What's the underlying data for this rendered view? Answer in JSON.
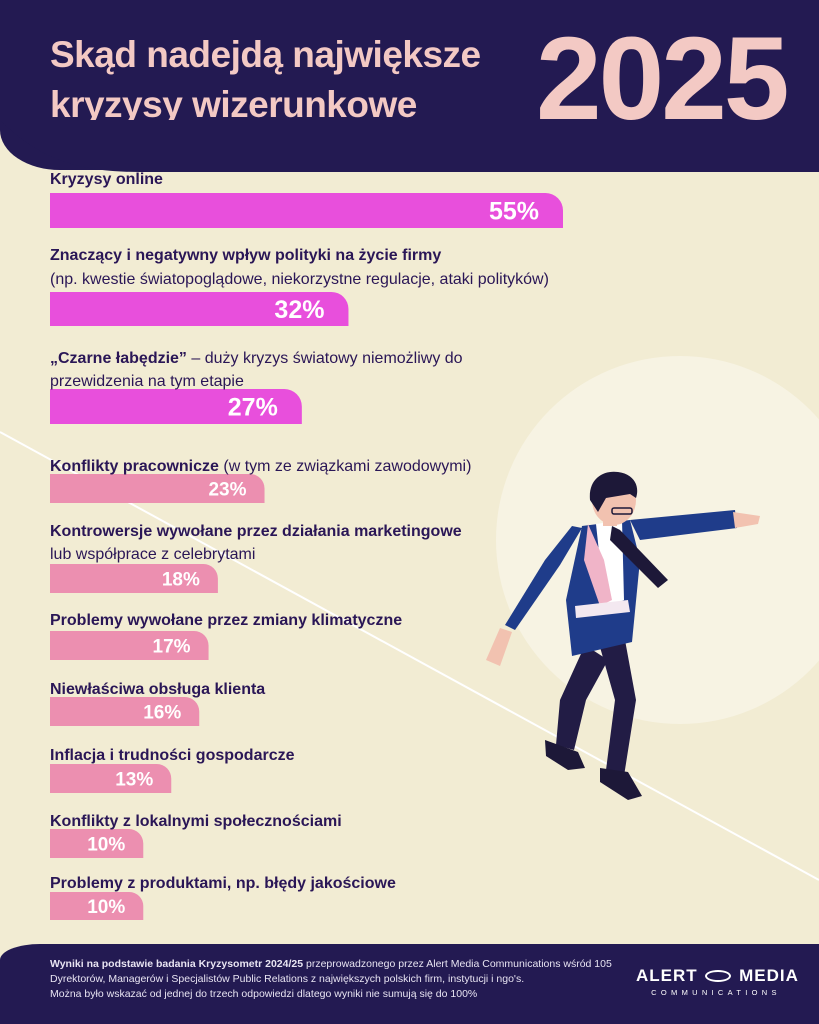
{
  "header": {
    "title_line1": "Skąd nadejdą największe",
    "title_line2": "kryzysy wizerunkowe",
    "year": "2025"
  },
  "colors": {
    "background": "#f2ecd3",
    "header_bg": "#231a52",
    "title_pink": "#f3c9c4",
    "bar_major": "#e84fdc",
    "bar_minor": "#ec8fb0",
    "label_text": "#2a1656"
  },
  "chart_data": {
    "type": "bar",
    "orientation": "horizontal",
    "unit": "%",
    "xlim": [
      0,
      55
    ],
    "grid": false,
    "categories": [
      {
        "bold": "Kryzysy online",
        "rest": "",
        "line2": "",
        "line2_bold": false
      },
      {
        "bold": "Znaczący i negatywny wpływ polityki na życie firmy",
        "rest": "",
        "line2": "(np. kwestie światopoglądowe, niekorzystne regulacje, ataki polityków)",
        "line2_bold": false
      },
      {
        "bold": "„Czarne łabędzie”",
        "rest": " – duży kryzys światowy niemożliwy do",
        "line2": "przewidzenia na tym etapie",
        "line2_bold": false
      },
      {
        "bold": "Konflikty pracownicze",
        "rest": " (w tym ze związkami zawodowymi)",
        "line2": "",
        "line2_bold": false
      },
      {
        "bold": "Kontrowersje wywołane przez działania marketingowe",
        "rest": "",
        "line2": "lub współprace z celebrytami",
        "line2_bold": false
      },
      {
        "bold": "Problemy wywołane przez zmiany klimatyczne",
        "rest": "",
        "line2": "",
        "line2_bold": false
      },
      {
        "bold": "Niewłaściwa obsługa klienta",
        "rest": "",
        "line2": "",
        "line2_bold": false
      },
      {
        "bold": "Inflacja i trudności gospodarcze",
        "rest": "",
        "line2": "",
        "line2_bold": false
      },
      {
        "bold": "Konflikty z lokalnymi społecznościami",
        "rest": "",
        "line2": "",
        "line2_bold": false
      },
      {
        "bold": "Problemy z produktami, np. błędy jakościowe",
        "rest": "",
        "line2": "",
        "line2_bold": false
      }
    ],
    "values": [
      55,
      32,
      27,
      23,
      18,
      17,
      16,
      13,
      10,
      10
    ],
    "value_labels": [
      "55%",
      "32%",
      "27%",
      "23%",
      "18%",
      "17%",
      "16%",
      "13%",
      "10%",
      "10%"
    ],
    "major_count": 3
  },
  "footer": {
    "note_bold": "Wyniki na podstawie badania Kryzysometr 2024/25",
    "note_line1": " przeprowadzonego przez Alert Media Communications wśród 105",
    "note_line2": "Dyrektorów, Managerów i Specjalistów Public Relations z największych polskich firm, instytucji i ngo's.",
    "note_line3": "Można było wskazać od jednej do trzech odpowiedzi dlatego wyniki nie sumują się do 100%"
  },
  "logo": {
    "word1": "ALERT",
    "word2": "MEDIA",
    "sub": "COMMUNICATIONS"
  }
}
